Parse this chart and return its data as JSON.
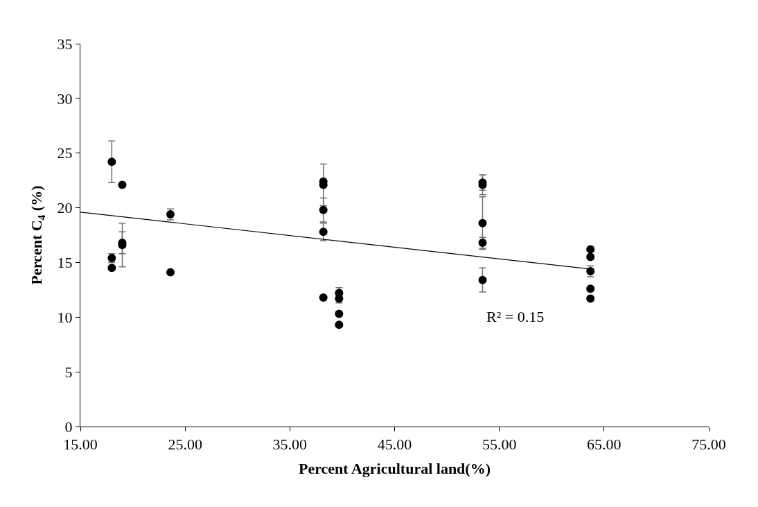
{
  "chart_data": {
    "type": "scatter",
    "xlabel": "Percent Agricultural land(%)",
    "ylabel": "Percent C$_{4}$ (%)",
    "xlim": [
      15,
      75
    ],
    "xticks": [
      {
        "value": 15,
        "label": "15.00"
      },
      {
        "value": 25,
        "label": "25.00"
      },
      {
        "value": 35,
        "label": "35.00"
      },
      {
        "value": 45,
        "label": "45.00"
      },
      {
        "value": 55,
        "label": "55.00"
      },
      {
        "value": 65,
        "label": "65.00"
      },
      {
        "value": 75,
        "label": "75.00"
      }
    ],
    "ylim": [
      0,
      35
    ],
    "yticks": [
      0,
      5,
      10,
      15,
      20,
      25,
      30,
      35
    ],
    "series": [
      {
        "marker": "circle",
        "color": "#000000",
        "x": [
          18.0,
          18.0,
          18.0,
          19.0,
          19.0,
          19.0,
          23.6,
          23.6,
          38.2,
          38.2,
          38.2,
          38.2,
          38.2,
          39.7,
          39.7,
          39.7,
          39.7,
          53.4,
          53.4,
          53.4,
          53.4,
          53.4,
          63.7,
          63.7,
          63.7,
          63.7,
          63.7
        ],
        "values": [
          24.2,
          15.4,
          14.5,
          22.1,
          16.8,
          16.6,
          19.4,
          14.1,
          22.4,
          22.1,
          19.8,
          17.8,
          11.8,
          12.2,
          11.7,
          10.3,
          9.3,
          22.3,
          22.1,
          18.6,
          16.8,
          13.4,
          16.2,
          15.5,
          14.2,
          12.6,
          11.7
        ],
        "errors": [
          1.9,
          0.4,
          null,
          null,
          1.0,
          2.0,
          0.5,
          null,
          null,
          1.9,
          1.1,
          0.8,
          null,
          0.5,
          0.4,
          null,
          null,
          0.7,
          0.9,
          2.4,
          0.5,
          1.1,
          null,
          null,
          0.5,
          null,
          null
        ]
      },
      {
        "type": "line",
        "marker": "none",
        "color": "#000000",
        "x": [
          15,
          63.7
        ],
        "values": [
          19.6,
          14.4
        ]
      }
    ],
    "annotations": [
      "R² = 0.15"
    ]
  }
}
